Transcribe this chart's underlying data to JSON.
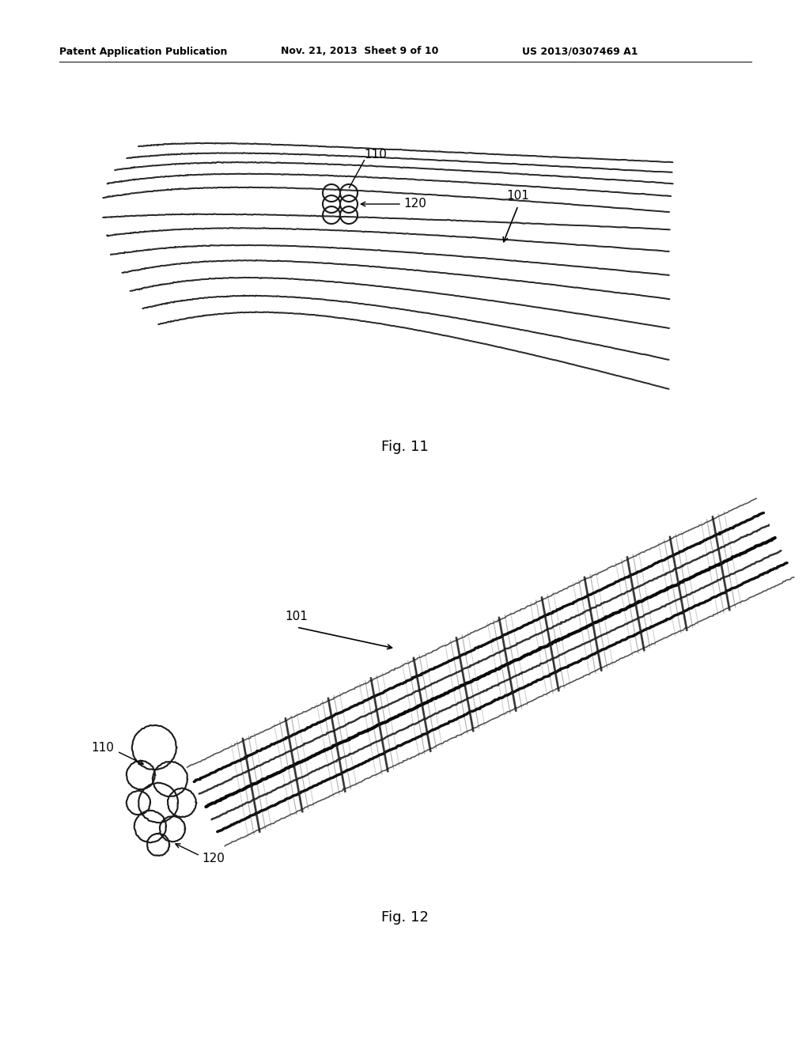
{
  "background_color": "#ffffff",
  "header_text": "Patent Application Publication",
  "header_date": "Nov. 21, 2013  Sheet 9 of 10",
  "header_patent": "US 2013/0307469 A1",
  "fig11_caption": "Fig. 11",
  "fig12_caption": "Fig. 12",
  "label_110_fig11": "110",
  "label_120_fig11": "120",
  "label_101_fig11": "101",
  "label_101_fig12": "101",
  "label_110_fig12": "110",
  "label_120_fig12": "120"
}
